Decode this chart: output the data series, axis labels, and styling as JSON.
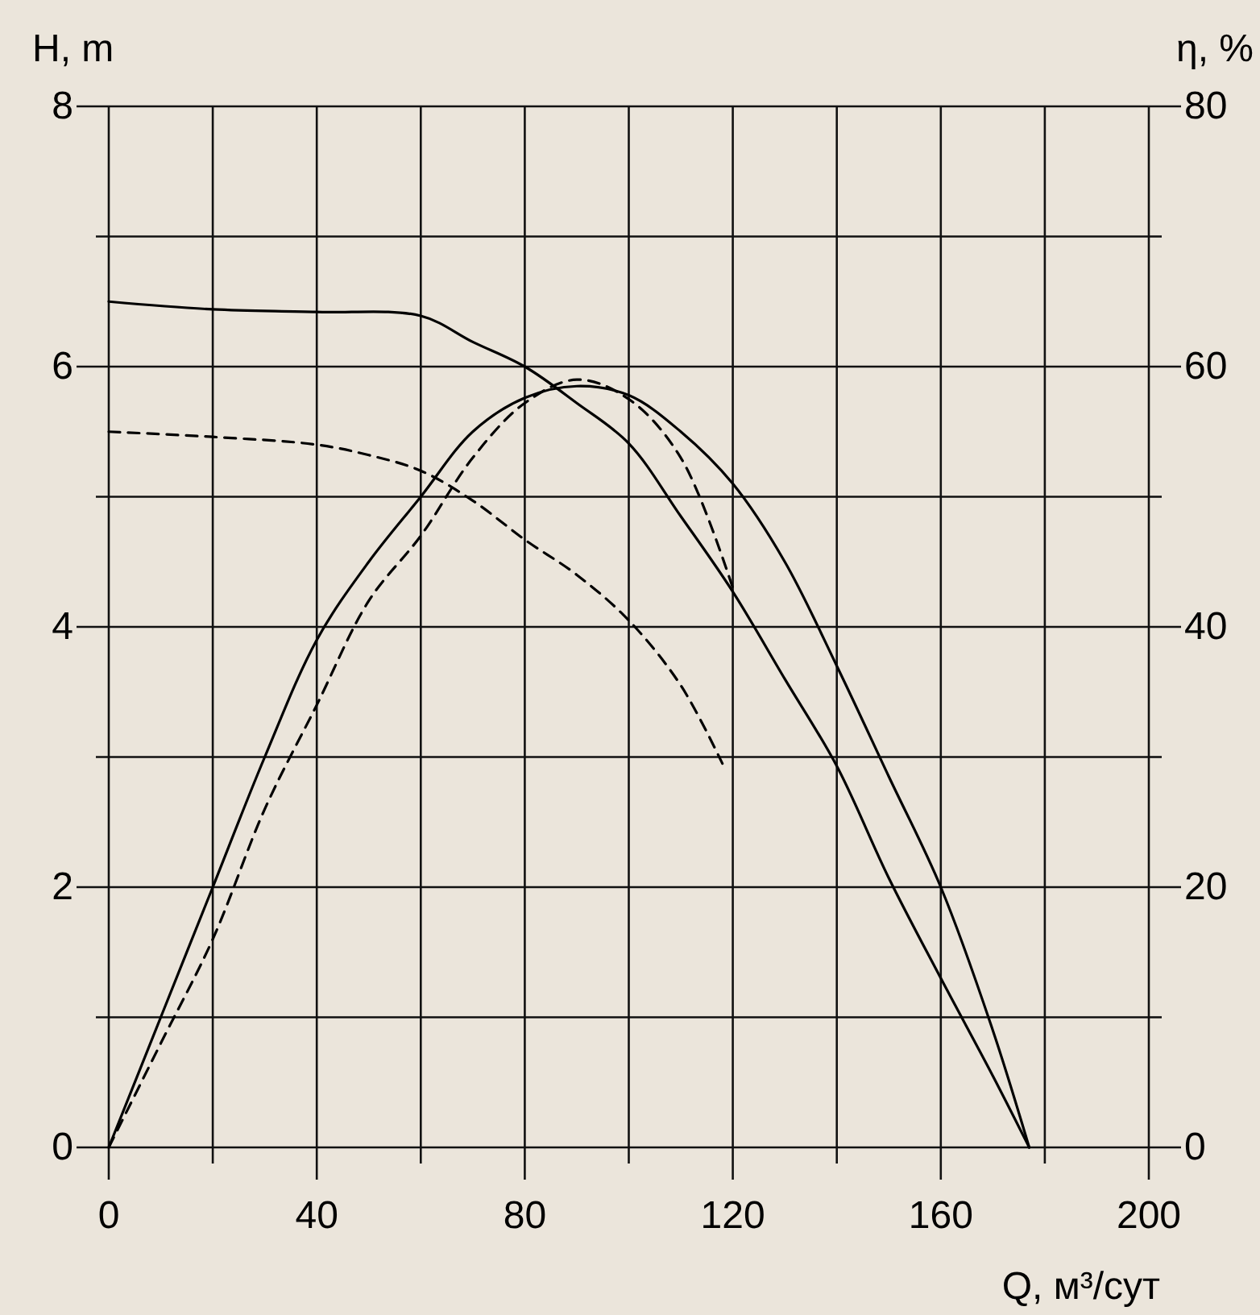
{
  "chart_data": {
    "type": "line",
    "xlabel": "Q, м³/сут",
    "ylabel": "H, m",
    "y2label": "η, %",
    "xlim": [
      0,
      200
    ],
    "xticks": [
      0,
      {
        "value": 20,
        "label": null
      },
      40,
      {
        "value": 60,
        "label": null
      },
      80,
      {
        "value": 100,
        "label": null
      },
      120,
      {
        "value": 140,
        "label": null
      },
      160,
      {
        "value": 180,
        "label": null
      },
      200
    ],
    "ylim": [
      0,
      8
    ],
    "yticks": [
      0,
      {
        "value": 1,
        "label": null
      },
      2,
      {
        "value": 3,
        "label": null
      },
      4,
      {
        "value": 5,
        "label": null
      },
      6,
      {
        "value": 7,
        "label": null
      },
      8
    ],
    "y2lim": [
      0,
      80
    ],
    "y2ticks": [
      0,
      {
        "value": 10,
        "label": null
      },
      20,
      {
        "value": 30,
        "label": null
      },
      40,
      {
        "value": 50,
        "label": null
      },
      60,
      {
        "value": 70,
        "label": null
      },
      80
    ],
    "grid": true,
    "marker": "none",
    "series": [
      {
        "color": "#000000",
        "line_style": "solid",
        "x": [
          0,
          20,
          40,
          60,
          70,
          80,
          90,
          100,
          110,
          120,
          130,
          140,
          150,
          160,
          170,
          177
        ],
        "values": [
          6.5,
          6.44,
          6.42,
          6.39,
          6.19,
          6.0,
          5.72,
          5.41,
          4.85,
          4.27,
          3.6,
          2.93,
          2.07,
          1.3,
          0.55,
          0
        ]
      },
      {
        "color": "#000000",
        "line_style": "dashed",
        "x": [
          0,
          20,
          40,
          50,
          60,
          70,
          80,
          90,
          100,
          110,
          118
        ],
        "values": [
          5.5,
          5.46,
          5.4,
          5.32,
          5.2,
          4.97,
          4.67,
          4.4,
          4.05,
          3.55,
          2.95
        ]
      },
      {
        "color": "#000000",
        "line_style": "solid",
        "axis": "y2",
        "x": [
          0,
          10,
          20,
          30,
          40,
          50,
          60,
          70,
          80,
          90,
          100,
          110,
          120,
          130,
          140,
          150,
          160,
          170,
          177
        ],
        "values": [
          0,
          10,
          20,
          30,
          39,
          45,
          50,
          55,
          57.6,
          58.5,
          57.8,
          55,
          51,
          45,
          37,
          28.5,
          20,
          9,
          0
        ]
      },
      {
        "color": "#000000",
        "line_style": "dashed",
        "axis": "y2",
        "x": [
          0,
          10,
          20,
          30,
          40,
          50,
          60,
          70,
          80,
          90,
          100,
          110,
          120
        ],
        "values": [
          0,
          8,
          16,
          26,
          34,
          42,
          47,
          53,
          57.2,
          59,
          57.5,
          53,
          43
        ]
      }
    ]
  }
}
